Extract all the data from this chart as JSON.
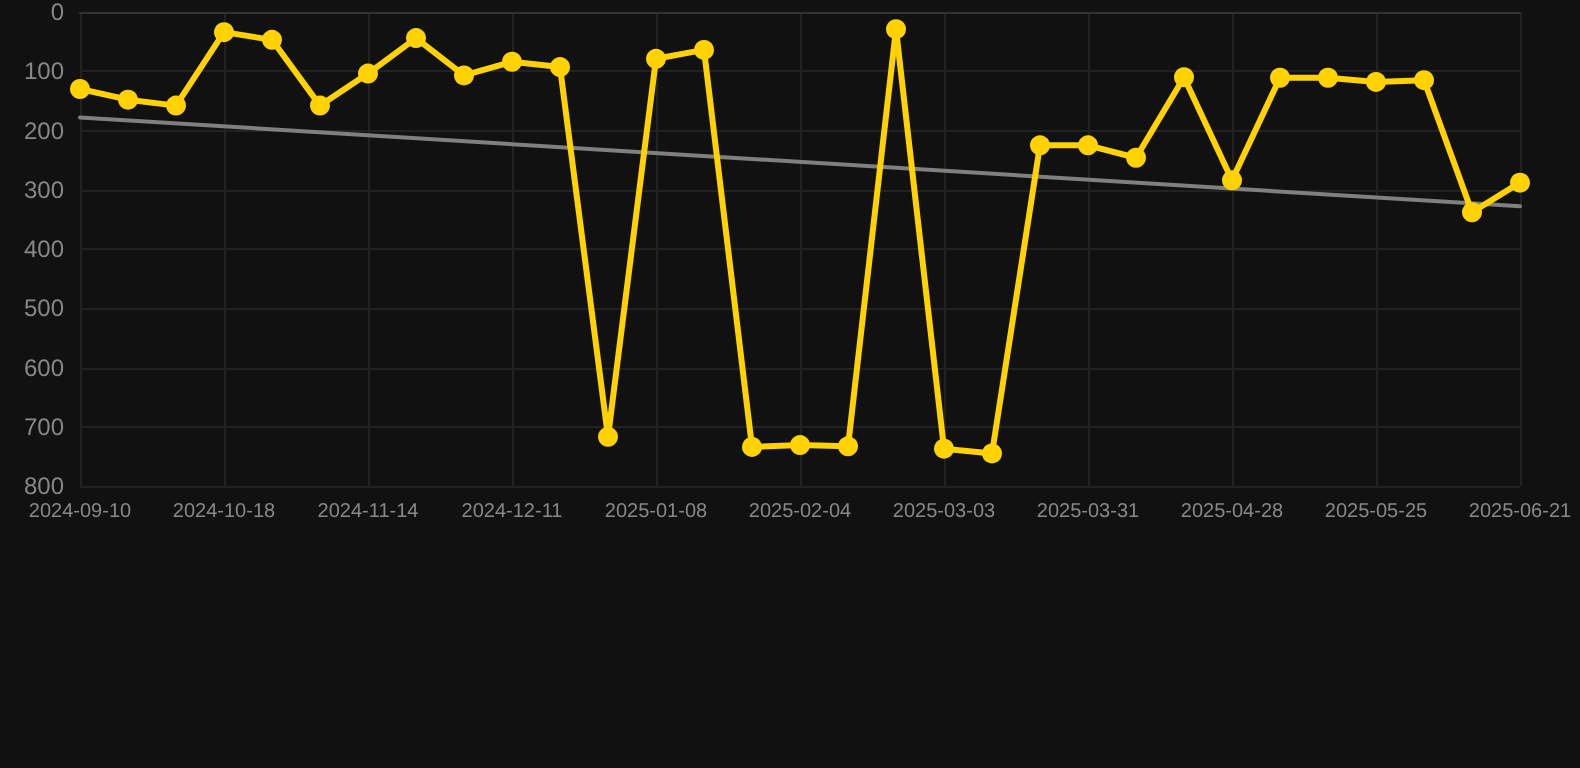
{
  "chart_data": {
    "type": "line",
    "categories": [
      "2024-09-10",
      null,
      null,
      "2024-10-18",
      null,
      null,
      "2024-11-14",
      null,
      null,
      "2024-12-11",
      null,
      null,
      "2025-01-08",
      null,
      null,
      "2025-02-04",
      null,
      null,
      "2025-03-03",
      null,
      null,
      "2025-03-31",
      null,
      null,
      "2025-04-28",
      null,
      null,
      "2025-05-25",
      null,
      null,
      "2025-06-21"
    ],
    "series": [
      {
        "color": "#ffd200",
        "marker": "circle",
        "values": [
          130,
          148,
          158,
          34,
          47,
          158,
          104,
          44,
          107,
          84,
          93,
          717,
          79,
          64,
          734,
          731,
          733,
          29,
          737,
          745,
          225,
          225,
          246,
          110,
          284,
          111,
          111,
          118,
          115,
          338,
          288
        ]
      },
      {
        "type": "line",
        "color": "#808080",
        "marker": "none",
        "values": [
          178,
          null,
          null,
          null,
          null,
          null,
          null,
          null,
          null,
          null,
          null,
          null,
          null,
          null,
          null,
          null,
          null,
          null,
          null,
          null,
          null,
          null,
          null,
          null,
          null,
          null,
          null,
          null,
          null,
          null,
          328
        ]
      }
    ],
    "ylim": [
      800,
      0
    ],
    "yticks": [
      0,
      100,
      200,
      300,
      400,
      500,
      600,
      700,
      800
    ],
    "grid": true
  }
}
